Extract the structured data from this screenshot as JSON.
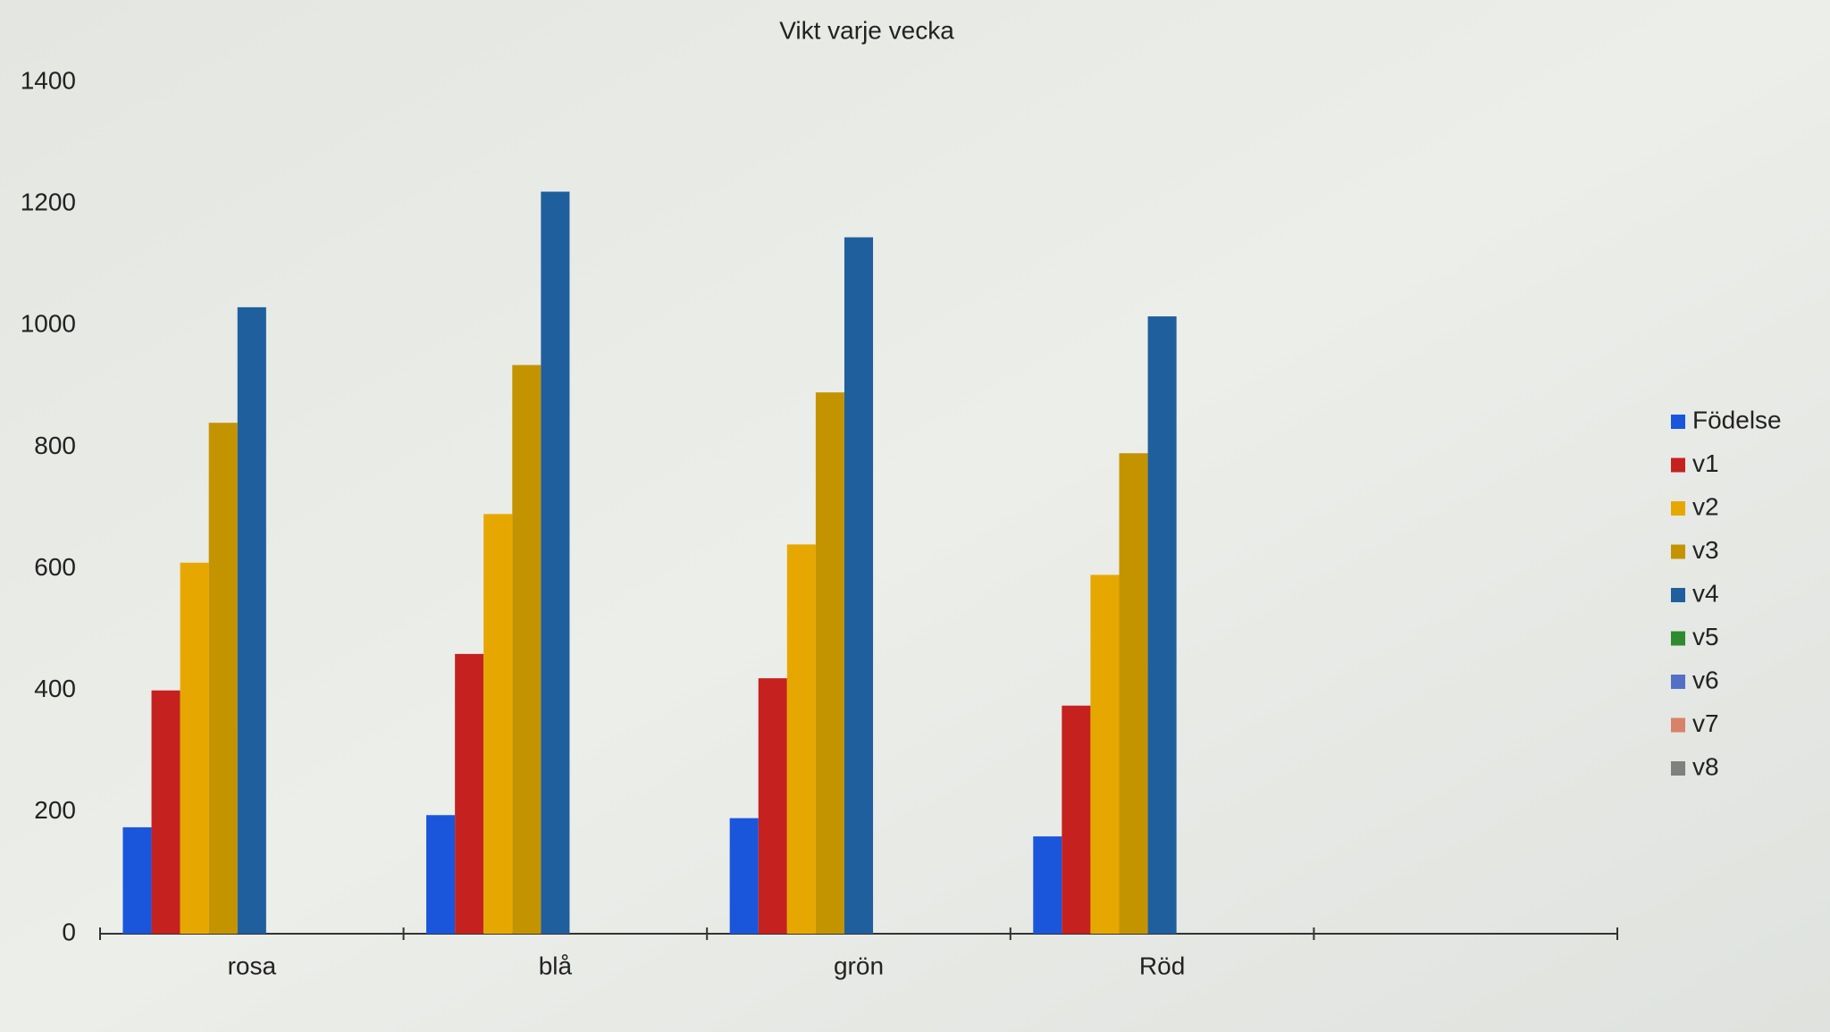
{
  "chart_data": {
    "type": "bar",
    "title": "Vikt varje vecka",
    "categories": [
      "rosa",
      "blå",
      "grön",
      "Röd",
      null
    ],
    "series": [
      {
        "name": "Födelse",
        "color": "#1a56db",
        "values": [
          175,
          195,
          190,
          160,
          null
        ]
      },
      {
        "name": "v1",
        "color": "#c5221f",
        "values": [
          400,
          460,
          420,
          375,
          null
        ]
      },
      {
        "name": "v2",
        "color": "#e6a800",
        "values": [
          610,
          690,
          640,
          590,
          null
        ]
      },
      {
        "name": "v3",
        "color": "#c49400",
        "values": [
          840,
          935,
          890,
          790,
          null
        ]
      },
      {
        "name": "v4",
        "color": "#1f5f9e",
        "values": [
          1030,
          1220,
          1145,
          1015,
          null
        ]
      },
      {
        "name": "v5",
        "color": "#2e8b2e",
        "values": [
          null,
          null,
          null,
          null,
          null
        ]
      },
      {
        "name": "v6",
        "color": "#5470c6",
        "values": [
          null,
          null,
          null,
          null,
          null
        ]
      },
      {
        "name": "v7",
        "color": "#d9826a",
        "values": [
          null,
          null,
          null,
          null,
          null
        ]
      },
      {
        "name": "v8",
        "color": "#808080",
        "values": [
          null,
          null,
          null,
          null,
          null
        ]
      }
    ],
    "ylim": [
      0,
      1400
    ],
    "yticks": [
      0,
      200,
      400,
      600,
      800,
      1000,
      1200,
      1400
    ],
    "grid": false,
    "legend": "right"
  }
}
